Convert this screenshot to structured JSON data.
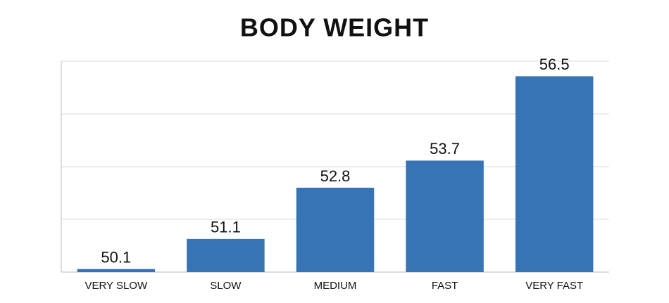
{
  "chart_data": {
    "type": "bar",
    "title": "BODY WEIGHT",
    "categories": [
      "VERY SLOW",
      "SLOW",
      "MEDIUM",
      "FAST",
      "VERY FAST"
    ],
    "values": [
      50.1,
      51.1,
      52.8,
      53.7,
      56.5
    ],
    "color": "#3674b5",
    "ylim": [
      50,
      57
    ],
    "yticks": [
      50,
      51.75,
      53.5,
      55.25,
      57
    ],
    "grid": true
  }
}
